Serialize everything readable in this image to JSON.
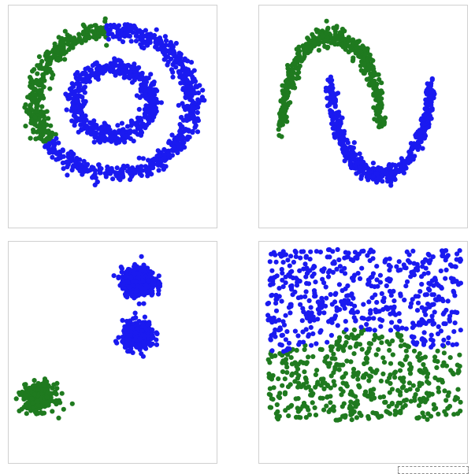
{
  "colors": {
    "class_a": "#1f7a1f",
    "class_b": "#1a1af0",
    "panel_border": "#d0d0d0"
  },
  "chart_data": [
    {
      "type": "scatter",
      "title": "",
      "xlim": [
        -1.25,
        1.25
      ],
      "ylim": [
        -1.3,
        1.3
      ],
      "pattern": "concentric-circles",
      "series": [
        {
          "color": "#1f7a1f",
          "ring_radius": 1.0,
          "theta_deg": [
            95,
            215
          ]
        },
        {
          "color": "#1a1af0",
          "ring_radius": 1.0,
          "theta_deg": [
            215,
            455
          ]
        },
        {
          "color": "#1a1af0",
          "ring_radius": 0.48,
          "theta_deg": [
            0,
            360
          ]
        }
      ],
      "noise": 0.06,
      "points_per_series": [
        340,
        620,
        480
      ]
    },
    {
      "type": "scatter",
      "title": "",
      "xlim": [
        -1.3,
        2.3
      ],
      "ylim": [
        -0.75,
        1.25
      ],
      "pattern": "two-moons",
      "series": [
        {
          "color": "#1f7a1f",
          "shape": "upper-moon"
        },
        {
          "color": "#1a1af0",
          "shape": "lower-moon"
        }
      ],
      "noise": 0.05,
      "points_per_series": [
        480,
        480
      ]
    },
    {
      "type": "scatter",
      "title": "",
      "xlim": [
        -12,
        12
      ],
      "ylim": [
        -12,
        12
      ],
      "pattern": "gaussian-blobs",
      "series": [
        {
          "color": "#1a1af0",
          "center": [
            3,
            8
          ],
          "std": 1.0,
          "count": 380
        },
        {
          "color": "#1a1af0",
          "center": [
            3,
            2
          ],
          "std": 0.95,
          "count": 340
        },
        {
          "color": "#1f7a1f",
          "center": [
            -9,
            -5
          ],
          "std": 0.95,
          "count": 300
        }
      ]
    },
    {
      "type": "scatter",
      "title": "",
      "xlim": [
        0,
        1
      ],
      "ylim": [
        0,
        1
      ],
      "pattern": "uniform-split-by-wave",
      "series": [
        {
          "color": "#1a1af0",
          "region": "above-boundary"
        },
        {
          "color": "#1f7a1f",
          "region": "below-boundary"
        }
      ],
      "count": 1000
    }
  ]
}
